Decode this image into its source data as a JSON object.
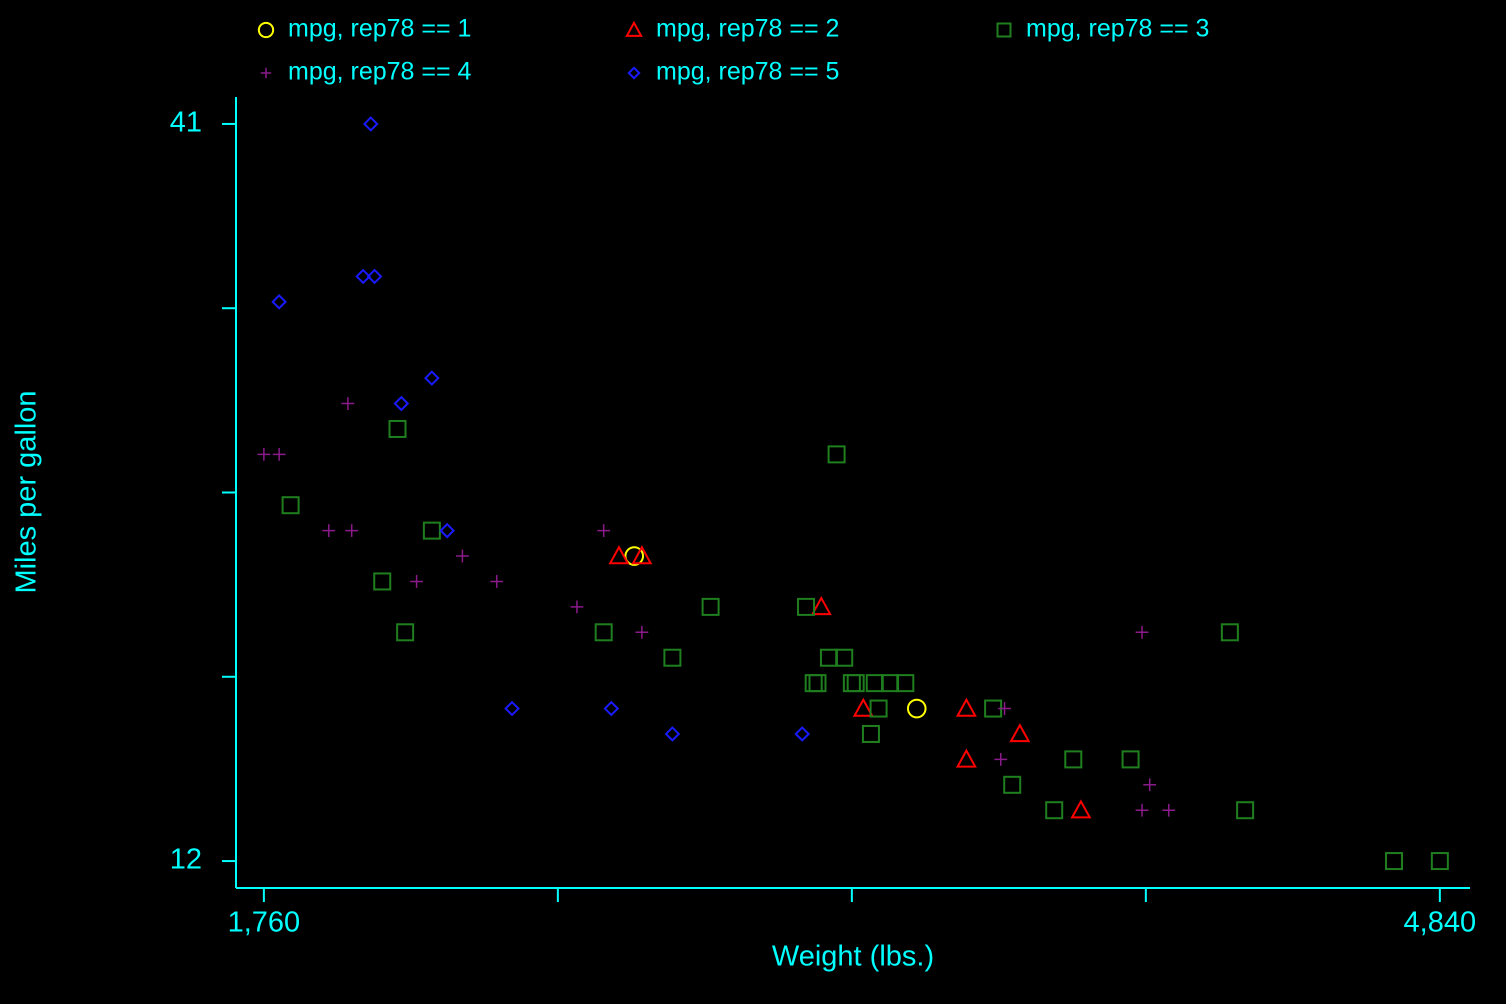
{
  "chart_data": {
    "type": "scatter",
    "x_label": "Weight (lbs.)",
    "y_label": "Miles per gallon",
    "xlim": [
      1687,
      4919
    ],
    "ylim": [
      10.94,
      42.06
    ],
    "xticks": [
      {
        "value": 1760,
        "label": "1,760"
      },
      2530,
      3300,
      4070,
      {
        "value": 4840,
        "label": "4,840"
      }
    ],
    "yticks": [
      41,
      33.75,
      26.5,
      19.25,
      12
    ],
    "yticks_labeled": [
      41,
      12
    ],
    "legend": "top",
    "series": [
      {
        "name": "mpg, rep78 == 1",
        "color": "#ffff00",
        "marker": "circle",
        "x": [
          2730,
          3470
        ],
        "values": [
          24,
          18
        ]
      },
      {
        "name": "mpg, rep78 == 2",
        "color": "#ff0000",
        "marker": "triangle",
        "x": [
          2690,
          2750,
          3220,
          3330,
          3600,
          3600,
          3740,
          3900
        ],
        "values": [
          24,
          24,
          22,
          18,
          18,
          16,
          17,
          14
        ]
      },
      {
        "name": "mpg, rep78 == 3",
        "color": "#1f7f1f",
        "marker": "square",
        "x": [
          2110,
          1830,
          2200,
          2070,
          2130,
          2650,
          2930,
          3180,
          2830,
          3260,
          3240,
          3280,
          3200,
          3210,
          3300,
          3310,
          3360,
          3400,
          3440,
          3370,
          3350,
          3670,
          3880,
          3720,
          4030,
          3830,
          4330,
          4290,
          4720,
          4840
        ],
        "values": [
          29,
          26,
          25,
          23,
          21,
          21,
          22,
          22,
          20,
          28,
          20,
          20,
          19,
          19,
          19,
          19,
          19,
          19,
          19,
          18,
          17,
          18,
          16,
          15,
          16,
          14,
          14,
          21,
          12,
          12
        ]
      },
      {
        "name": "mpg, rep78 == 4",
        "color": "#8b1a8b",
        "marker": "plus",
        "x": [
          1760,
          1800,
          1980,
          1930,
          1990,
          2160,
          2280,
          2370,
          2580,
          2650,
          2750,
          3700,
          3690,
          4060,
          4080,
          4060,
          4130
        ],
        "values": [
          28,
          28,
          30,
          25,
          25,
          23,
          24,
          23,
          22,
          25,
          21,
          18,
          16,
          21,
          15,
          14,
          14
        ]
      },
      {
        "name": "mpg, rep78 == 5",
        "color": "#1a1aff",
        "marker": "diamond",
        "x": [
          2040,
          1800,
          2020,
          2050,
          2200,
          2120,
          2240,
          2410,
          2670,
          2830,
          3170
        ],
        "values": [
          41,
          34,
          35,
          35,
          31,
          30,
          25,
          18,
          18,
          17,
          17
        ]
      }
    ]
  }
}
